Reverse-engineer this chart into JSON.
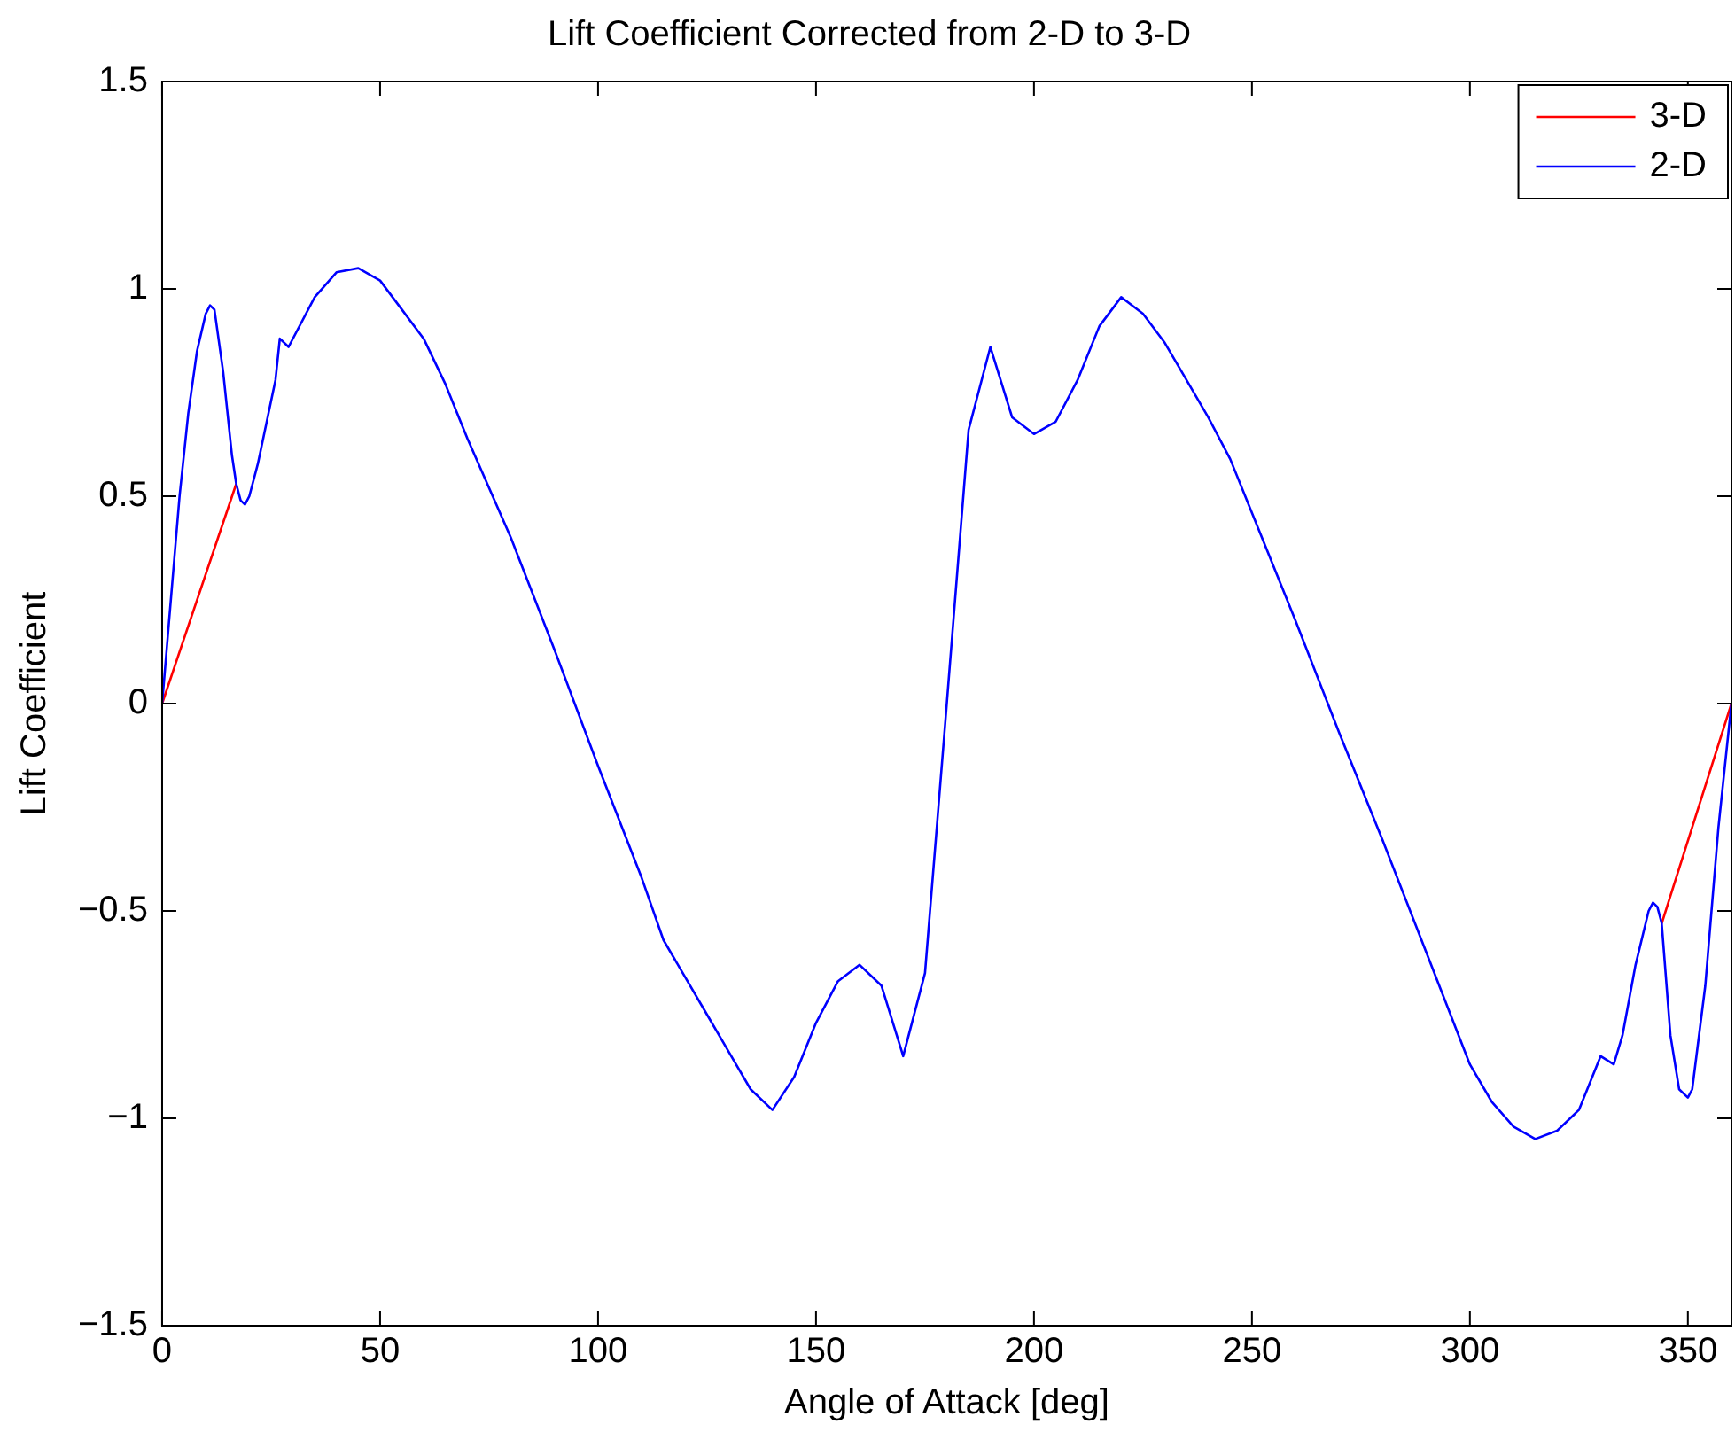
{
  "chart_data": {
    "type": "line",
    "title": "Lift Coefficient Corrected from 2-D to 3-D",
    "xlabel": "Angle of Attack [deg]",
    "ylabel": "Lift Coefficient",
    "xlim": [
      0,
      360
    ],
    "xticks": [
      0,
      50,
      100,
      150,
      200,
      250,
      300,
      350
    ],
    "ylim": [
      -1.5,
      1.5
    ],
    "yticks": [
      -1.5,
      -1,
      -0.5,
      0,
      0.5,
      1,
      1.5
    ],
    "grid": false,
    "legend": "top right",
    "marker": "none",
    "line_style": "solid",
    "series": [
      {
        "name": "3-D",
        "color": "#ff0000",
        "x": [
          0,
          17,
          180,
          344,
          360
        ],
        "values": [
          0,
          0.53,
          null,
          -0.53,
          0
        ]
      },
      {
        "name": "2-D",
        "color": "#0000ff",
        "x": [
          0,
          2,
          4,
          6,
          8,
          10,
          11,
          12,
          14,
          16,
          17,
          18,
          19,
          20,
          22,
          24,
          26,
          27,
          29,
          35,
          40,
          45,
          50,
          55,
          60,
          65,
          70,
          80,
          90,
          100,
          110,
          115,
          120,
          125,
          130,
          135,
          140,
          145,
          150,
          155,
          160,
          165,
          170,
          175,
          180,
          185,
          190,
          195,
          200,
          205,
          210,
          215,
          220,
          225,
          230,
          235,
          240,
          245,
          250,
          260,
          270,
          280,
          290,
          300,
          305,
          310,
          315,
          320,
          325,
          330,
          333,
          335,
          338,
          341,
          342,
          343,
          344,
          346,
          348,
          350,
          351,
          354,
          357,
          360
        ],
        "values": [
          0,
          0.25,
          0.5,
          0.7,
          0.85,
          0.94,
          0.96,
          0.95,
          0.8,
          0.6,
          0.53,
          0.49,
          0.48,
          0.5,
          0.58,
          0.68,
          0.78,
          0.88,
          0.86,
          0.98,
          1.04,
          1.05,
          1.02,
          0.95,
          0.88,
          0.77,
          0.64,
          0.4,
          0.13,
          -0.15,
          -0.42,
          -0.57,
          -0.66,
          -0.75,
          -0.84,
          -0.93,
          -0.98,
          -0.9,
          -0.77,
          -0.67,
          -0.63,
          -0.68,
          -0.85,
          -0.65,
          0,
          0.66,
          0.86,
          0.69,
          0.65,
          0.68,
          0.78,
          0.91,
          0.98,
          0.94,
          0.87,
          0.78,
          0.69,
          0.59,
          0.46,
          0.2,
          -0.07,
          -0.33,
          -0.6,
          -0.87,
          -0.96,
          -1.02,
          -1.05,
          -1.03,
          -0.98,
          -0.85,
          -0.87,
          -0.8,
          -0.63,
          -0.5,
          -0.48,
          -0.49,
          -0.53,
          -0.8,
          -0.93,
          -0.95,
          -0.93,
          -0.68,
          -0.3,
          0
        ]
      }
    ]
  }
}
